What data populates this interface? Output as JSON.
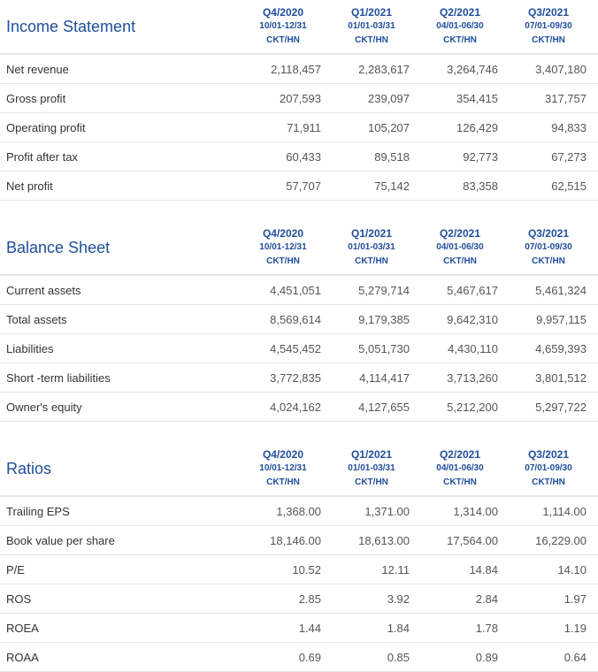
{
  "periods": [
    {
      "quarter": "Q4/2020",
      "range": "10/01-12/31",
      "unit": "CKT/HN"
    },
    {
      "quarter": "Q1/2021",
      "range": "01/01-03/31",
      "unit": "CKT/HN"
    },
    {
      "quarter": "Q2/2021",
      "range": "04/01-06/30",
      "unit": "CKT/HN"
    },
    {
      "quarter": "Q3/2021",
      "range": "07/01-09/30",
      "unit": "CKT/HN"
    }
  ],
  "sections": [
    {
      "title": "Income Statement",
      "rows": [
        {
          "label": "Net revenue",
          "values": [
            "2,118,457",
            "2,283,617",
            "3,264,746",
            "3,407,180"
          ]
        },
        {
          "label": "Gross profit",
          "values": [
            "207,593",
            "239,097",
            "354,415",
            "317,757"
          ]
        },
        {
          "label": "Operating profit",
          "values": [
            "71,911",
            "105,207",
            "126,429",
            "94,833"
          ]
        },
        {
          "label": "Profit after tax",
          "values": [
            "60,433",
            "89,518",
            "92,773",
            "67,273"
          ]
        },
        {
          "label": "Net profit",
          "values": [
            "57,707",
            "75,142",
            "83,358",
            "62,515"
          ]
        }
      ]
    },
    {
      "title": "Balance Sheet",
      "rows": [
        {
          "label": "Current assets",
          "values": [
            "4,451,051",
            "5,279,714",
            "5,467,617",
            "5,461,324"
          ]
        },
        {
          "label": "Total assets",
          "values": [
            "8,569,614",
            "9,179,385",
            "9,642,310",
            "9,957,115"
          ]
        },
        {
          "label": "Liabilities",
          "values": [
            "4,545,452",
            "5,051,730",
            "4,430,110",
            "4,659,393"
          ]
        },
        {
          "label": "Short -term liabilities",
          "values": [
            "3,772,835",
            "4,114,417",
            "3,713,260",
            "3,801,512"
          ]
        },
        {
          "label": "Owner's equity",
          "values": [
            "4,024,162",
            "4,127,655",
            "5,212,200",
            "5,297,722"
          ]
        }
      ]
    },
    {
      "title": "Ratios",
      "rows": [
        {
          "label": "Trailing EPS",
          "values": [
            "1,368.00",
            "1,371.00",
            "1,314.00",
            "1,114.00"
          ]
        },
        {
          "label": "Book value per share",
          "values": [
            "18,146.00",
            "18,613.00",
            "17,564.00",
            "16,229.00"
          ]
        },
        {
          "label": "P/E",
          "values": [
            "10.52",
            "12.11",
            "14.84",
            "14.10"
          ]
        },
        {
          "label": "ROS",
          "values": [
            "2.85",
            "3.92",
            "2.84",
            "1.97"
          ]
        },
        {
          "label": "ROEA",
          "values": [
            "1.44",
            "1.84",
            "1.78",
            "1.19"
          ]
        },
        {
          "label": "ROAA",
          "values": [
            "0.69",
            "0.85",
            "0.89",
            "0.64"
          ]
        }
      ]
    }
  ]
}
